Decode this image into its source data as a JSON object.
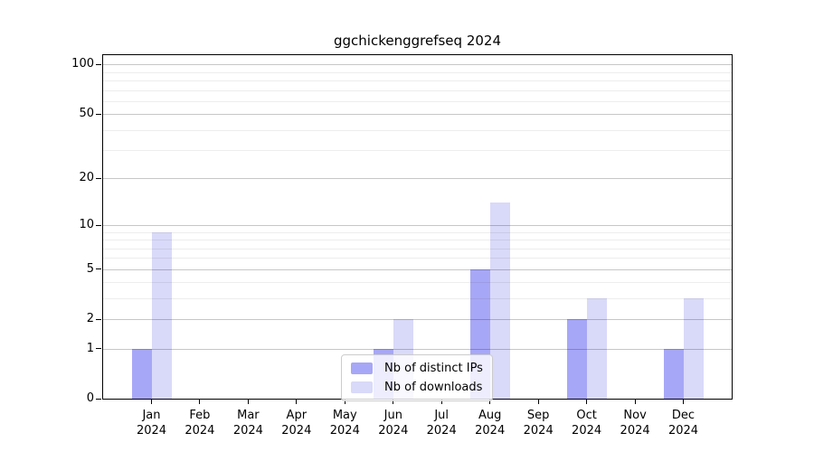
{
  "chart_data": {
    "type": "bar",
    "title": "ggchickenggrefseq 2024",
    "categories": [
      "Jan",
      "Feb",
      "Mar",
      "Apr",
      "May",
      "Jun",
      "Jul",
      "Aug",
      "Sep",
      "Oct",
      "Nov",
      "Dec"
    ],
    "x_year_label": "2024",
    "series": [
      {
        "name": "Nb of distinct IPs",
        "color": "#a7a7f7",
        "values": [
          1,
          0,
          0,
          0,
          0,
          1,
          0,
          5,
          0,
          2,
          0,
          1
        ]
      },
      {
        "name": "Nb of downloads",
        "color": "#d9d9f9",
        "values": [
          9,
          0,
          0,
          0,
          0,
          2,
          0,
          14,
          0,
          3,
          0,
          3
        ]
      }
    ],
    "yscale": "log1p",
    "ylim": [
      0,
      114
    ],
    "yticks": [
      0,
      1,
      2,
      5,
      10,
      20,
      50,
      100
    ],
    "yticks_minor": [
      3,
      4,
      6,
      7,
      8,
      9,
      30,
      40,
      60,
      70,
      80,
      90
    ],
    "grid": true,
    "legend_position": "lower center",
    "colors": {
      "bar_distinct_ips": "#a7a7f7",
      "bar_downloads": "#d9d9f9",
      "grid_major": "rgba(0,0,0,0.22)",
      "grid_minor": "rgba(0,0,0,0.07)",
      "axis": "#000000",
      "background": "#ffffff",
      "legend_border": "#cccccc"
    }
  }
}
